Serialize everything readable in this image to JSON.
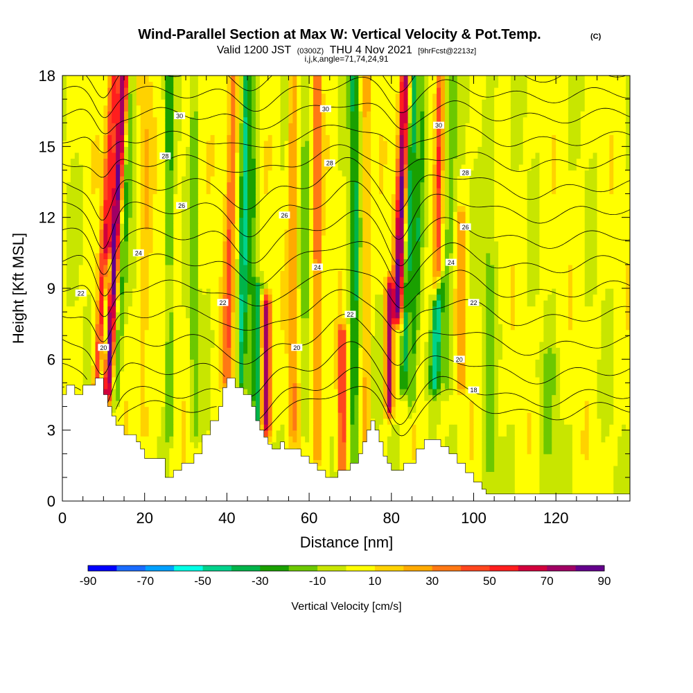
{
  "header": {
    "title": "Wind-Parallel Section at Max W: Vertical Velocity & Pot.Temp.",
    "title_mark": "(C)",
    "valid_main": "Valid 1200 JST",
    "valid_utc": "(0300Z)",
    "valid_date": "THU 4 Nov 2021",
    "valid_fcst": "[9hrFcst@2213z]",
    "indices": "i,j,k,angle=71,74,24,91"
  },
  "chart_data": {
    "type": "heatmap",
    "xlabel": "Distance [nm]",
    "ylabel": "Height [Kft MSL]",
    "xlim": [
      0,
      138
    ],
    "ylim": [
      0,
      18
    ],
    "xticks": [
      0,
      20,
      40,
      60,
      80,
      100,
      120
    ],
    "xticklabels": [
      "0",
      "20",
      "40",
      "60",
      "80",
      "100",
      "120"
    ],
    "yticks": [
      0,
      3,
      6,
      9,
      12,
      15,
      18
    ],
    "yticklabels": [
      "0",
      "3",
      "6",
      "9",
      "12",
      "15",
      "18"
    ],
    "colorbar": {
      "label": "Vertical Velocity [cm/s]",
      "min": -90,
      "max": 90,
      "step": 10,
      "ticklabels": [
        "-90",
        "-70",
        "-50",
        "-30",
        "-10",
        "10",
        "30",
        "50",
        "70",
        "90"
      ],
      "colors": [
        "#0000ff",
        "#1a6bff",
        "#00a0ff",
        "#00ffe6",
        "#00d28c",
        "#00b44a",
        "#1aa000",
        "#6cc800",
        "#c8e600",
        "#ffff00",
        "#ffd200",
        "#ffaa00",
        "#ff7814",
        "#ff461e",
        "#ff1e1e",
        "#d2003c",
        "#a00064",
        "#64008c"
      ]
    },
    "velocity_features": [
      {
        "x": 8.5,
        "z0": 4.5,
        "z1": 18.0,
        "slope": 0.3,
        "w": 55,
        "width": 1.2
      },
      {
        "x": 10.8,
        "z0": 4.5,
        "z1": 18.0,
        "slope": 0.3,
        "w": 80,
        "width": 1.2
      },
      {
        "x": 13.0,
        "z0": 4.5,
        "z1": 18.0,
        "slope": 0.3,
        "w": -25,
        "width": 1.0
      },
      {
        "x": 9.6,
        "z0": 4.5,
        "z1": 10.0,
        "slope": 0.3,
        "w": -60,
        "width": 0.8
      },
      {
        "x": 26.0,
        "z0": 3.0,
        "z1": 18.0,
        "slope": 0.0,
        "w": -25,
        "width": 1.0
      },
      {
        "x": 20.0,
        "z0": 3.0,
        "z1": 18.0,
        "slope": 0.0,
        "w": 15,
        "width": 1.5
      },
      {
        "x": 32.0,
        "z0": 3.0,
        "z1": 18.0,
        "slope": 0.0,
        "w": -20,
        "width": 0.9
      },
      {
        "x": 40.0,
        "z0": 5.0,
        "z1": 18.0,
        "slope": 0.12,
        "w": 35,
        "width": 1.2
      },
      {
        "x": 43.5,
        "z0": 5.0,
        "z1": 18.0,
        "slope": 0.1,
        "w": -45,
        "width": 1.0
      },
      {
        "x": 45.5,
        "z0": 4.0,
        "z1": 18.0,
        "slope": 0.1,
        "w": -20,
        "width": 1.0
      },
      {
        "x": 47.5,
        "z0": 3.0,
        "z1": 9.0,
        "slope": 0.0,
        "w": -35,
        "width": 1.0
      },
      {
        "x": 49.5,
        "z0": 3.2,
        "z1": 8.3,
        "slope": 0.0,
        "w": 75,
        "width": 1.2
      },
      {
        "x": 56.0,
        "z0": 3.0,
        "z1": 18.0,
        "slope": 0.0,
        "w": 30,
        "width": 1.0
      },
      {
        "x": 59.0,
        "z0": 3.0,
        "z1": 18.0,
        "slope": 0.0,
        "w": -15,
        "width": 1.0
      },
      {
        "x": 62.0,
        "z0": 2.0,
        "z1": 18.0,
        "slope": 0.0,
        "w": 35,
        "width": 1.0
      },
      {
        "x": 68.0,
        "z0": 1.5,
        "z1": 7.0,
        "slope": 0.0,
        "w": 50,
        "width": 1.0
      },
      {
        "x": 71.0,
        "z0": 1.5,
        "z1": 18.0,
        "slope": 0.0,
        "w": -35,
        "width": 1.2
      },
      {
        "x": 74.0,
        "z0": 2.0,
        "z1": 18.0,
        "slope": 0.0,
        "w": 20,
        "width": 1.0
      },
      {
        "x": 79.5,
        "z0": 4.0,
        "z1": 9.0,
        "slope": 0.0,
        "w": 70,
        "width": 0.9
      },
      {
        "x": 81.5,
        "z0": 8.0,
        "z1": 18.0,
        "slope": 0.18,
        "w": 80,
        "width": 1.2
      },
      {
        "x": 83.0,
        "z0": 5.0,
        "z1": 18.0,
        "slope": 0.2,
        "w": -40,
        "width": 1.0
      },
      {
        "x": 85.0,
        "z0": 4.0,
        "z1": 18.0,
        "slope": 0.2,
        "w": -25,
        "width": 1.0
      },
      {
        "x": 90.5,
        "z0": 5.0,
        "z1": 9.0,
        "slope": 0.25,
        "w": -45,
        "width": 1.2
      },
      {
        "x": 91.0,
        "z0": 9.0,
        "z1": 18.0,
        "slope": 0.1,
        "w": 40,
        "width": 0.9
      },
      {
        "x": 93.5,
        "z0": 5.0,
        "z1": 18.0,
        "slope": 0.1,
        "w": -20,
        "width": 1.2
      },
      {
        "x": 97.0,
        "z0": 5.0,
        "z1": 12.0,
        "slope": 0.0,
        "w": 25,
        "width": 1.0
      },
      {
        "x": 104.0,
        "z0": 0.5,
        "z1": 18.0,
        "slope": 0.0,
        "w": -15,
        "width": 1.5
      },
      {
        "x": 118.0,
        "z0": 0.5,
        "z1": 6.0,
        "slope": 0.0,
        "w": -12,
        "width": 2.5
      }
    ],
    "terrain_profile": {
      "x": [
        0,
        1,
        1,
        3,
        3,
        5,
        5,
        8,
        8,
        10,
        10,
        11,
        11,
        12,
        12,
        13,
        13,
        15,
        15,
        18,
        18,
        19,
        19,
        20,
        20,
        25,
        25,
        27,
        27,
        29,
        29,
        32,
        32,
        34,
        34,
        36,
        36,
        38,
        38,
        39,
        39,
        40,
        40,
        42,
        42,
        44,
        44,
        46,
        46,
        47,
        47,
        48,
        48,
        49,
        49,
        50,
        50,
        51,
        51,
        53,
        53,
        54,
        54,
        58,
        58,
        60,
        60,
        62,
        62,
        64,
        64,
        67,
        67,
        70,
        70,
        72,
        72,
        73,
        73,
        74,
        74,
        75,
        75,
        76,
        76,
        77,
        77,
        78,
        78,
        79,
        79,
        80,
        80,
        83,
        83,
        86,
        86,
        88,
        88,
        90,
        90,
        92,
        92,
        94,
        94,
        96,
        96,
        98,
        98,
        100,
        100,
        102,
        102,
        103,
        103,
        104,
        104,
        138
      ],
      "z": [
        4.5,
        4.5,
        4.9,
        4.9,
        4.5,
        4.5,
        4.9,
        4.9,
        5.2,
        5.2,
        4.5,
        4.5,
        4.0,
        4.0,
        3.6,
        3.6,
        3.2,
        3.2,
        2.8,
        2.8,
        2.5,
        2.5,
        2.2,
        2.2,
        1.8,
        1.8,
        1.0,
        1.0,
        1.3,
        1.3,
        1.6,
        1.6,
        2.0,
        2.0,
        2.8,
        2.8,
        3.4,
        3.4,
        4.0,
        4.0,
        4.8,
        4.8,
        5.2,
        5.2,
        4.8,
        4.8,
        4.5,
        4.5,
        4.0,
        4.0,
        3.4,
        3.4,
        3.0,
        3.0,
        2.7,
        2.7,
        2.4,
        2.4,
        2.2,
        2.2,
        2.5,
        2.5,
        2.2,
        2.2,
        1.9,
        1.9,
        1.6,
        1.6,
        1.3,
        1.3,
        1.0,
        1.0,
        1.3,
        1.3,
        1.6,
        1.6,
        2.0,
        2.0,
        2.5,
        2.5,
        3.0,
        3.0,
        3.4,
        3.4,
        3.0,
        3.0,
        2.5,
        2.5,
        1.9,
        1.9,
        1.6,
        1.6,
        1.3,
        1.3,
        1.6,
        1.6,
        2.2,
        2.2,
        2.6,
        2.6,
        2.6,
        2.6,
        2.3,
        2.3,
        2.0,
        2.0,
        1.6,
        1.6,
        1.2,
        1.2,
        0.8,
        0.8,
        0.5,
        0.5,
        0.3,
        0.3,
        0.3,
        0.3
      ]
    },
    "contour_levels": [
      18,
      19,
      20,
      21,
      22,
      23,
      24,
      25,
      26,
      27,
      28,
      29,
      30,
      31,
      32
    ],
    "contour_base_height": [
      4.0,
      4.6,
      5.6,
      6.8,
      8.0,
      9.1,
      10.2,
      11.3,
      12.4,
      13.4,
      14.4,
      15.4,
      16.4,
      17.3,
      18.2
    ],
    "contour_bumps": [
      {
        "x": 10.0,
        "width": 3.0,
        "amp": -1.5
      },
      {
        "x": 46.0,
        "width": 6.0,
        "amp": -1.0
      },
      {
        "x": 70.0,
        "width": 7.0,
        "amp": 0.9
      },
      {
        "x": 82.0,
        "width": 4.0,
        "amp": -1.2
      },
      {
        "x": 95.0,
        "width": 8.0,
        "amp": 0.5
      },
      {
        "x": 115.0,
        "width": 12.0,
        "amp": -0.4
      }
    ],
    "contour_labels": [
      {
        "text": "30",
        "x": 28.5,
        "y": 16.3
      },
      {
        "text": "30",
        "x": 64.0,
        "y": 16.6
      },
      {
        "text": "30",
        "x": 91.5,
        "y": 15.9
      },
      {
        "text": "28",
        "x": 25.0,
        "y": 14.6
      },
      {
        "text": "28",
        "x": 65.0,
        "y": 14.3
      },
      {
        "text": "28",
        "x": 98.0,
        "y": 13.9
      },
      {
        "text": "26",
        "x": 29.0,
        "y": 12.5
      },
      {
        "text": "26",
        "x": 54.0,
        "y": 12.1
      },
      {
        "text": "26",
        "x": 98.0,
        "y": 11.6
      },
      {
        "text": "24",
        "x": 18.5,
        "y": 10.5
      },
      {
        "text": "24",
        "x": 62.0,
        "y": 9.9
      },
      {
        "text": "24",
        "x": 94.5,
        "y": 10.1
      },
      {
        "text": "22",
        "x": 4.5,
        "y": 8.8
      },
      {
        "text": "22",
        "x": 39.0,
        "y": 8.4
      },
      {
        "text": "22",
        "x": 70.0,
        "y": 7.9
      },
      {
        "text": "22",
        "x": 100.0,
        "y": 8.4
      },
      {
        "text": "20",
        "x": 10.0,
        "y": 6.5
      },
      {
        "text": "20",
        "x": 57.0,
        "y": 6.5
      },
      {
        "text": "20",
        "x": 96.5,
        "y": 6.0
      },
      {
        "text": "18",
        "x": 100.0,
        "y": 4.7
      }
    ]
  }
}
